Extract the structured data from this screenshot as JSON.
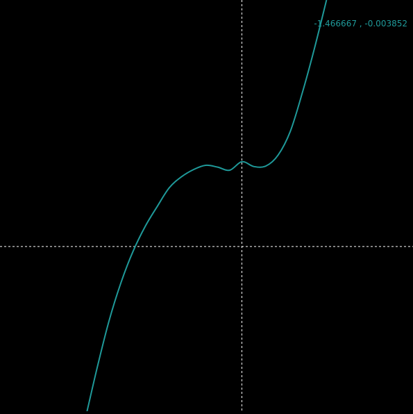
{
  "coordinate_readout": "-1.466667 , -0.003852",
  "colors": {
    "background": "#000000",
    "curve": "#1f9a9a",
    "crosshair": "#ffffff",
    "readout_text": "#1f9a9a"
  },
  "chart_data": {
    "type": "line",
    "title": "",
    "xlabel": "",
    "ylabel": "",
    "xlim": [
      -4.0,
      2.83
    ],
    "ylim": [
      -2.72,
      4.07
    ],
    "grid": false,
    "legend": "none",
    "crosshair": {
      "x": 0,
      "y": 0
    },
    "series": [
      {
        "values_x": [
          -2.56,
          -2.4,
          -2.2,
          -2.0,
          -1.8,
          -1.6,
          -1.4,
          -1.2,
          -1.0,
          -0.8,
          -0.6,
          -0.4,
          -0.2,
          0.0,
          0.2,
          0.4,
          0.6,
          0.8,
          1.0,
          1.2,
          1.4
        ],
        "values_y": [
          -2.72,
          -2.03,
          -1.24,
          -0.6,
          -0.08,
          0.33,
          0.66,
          0.97,
          1.15,
          1.27,
          1.34,
          1.31,
          1.26,
          1.4,
          1.32,
          1.33,
          1.51,
          1.9,
          2.54,
          3.27,
          4.07
        ]
      }
    ]
  }
}
